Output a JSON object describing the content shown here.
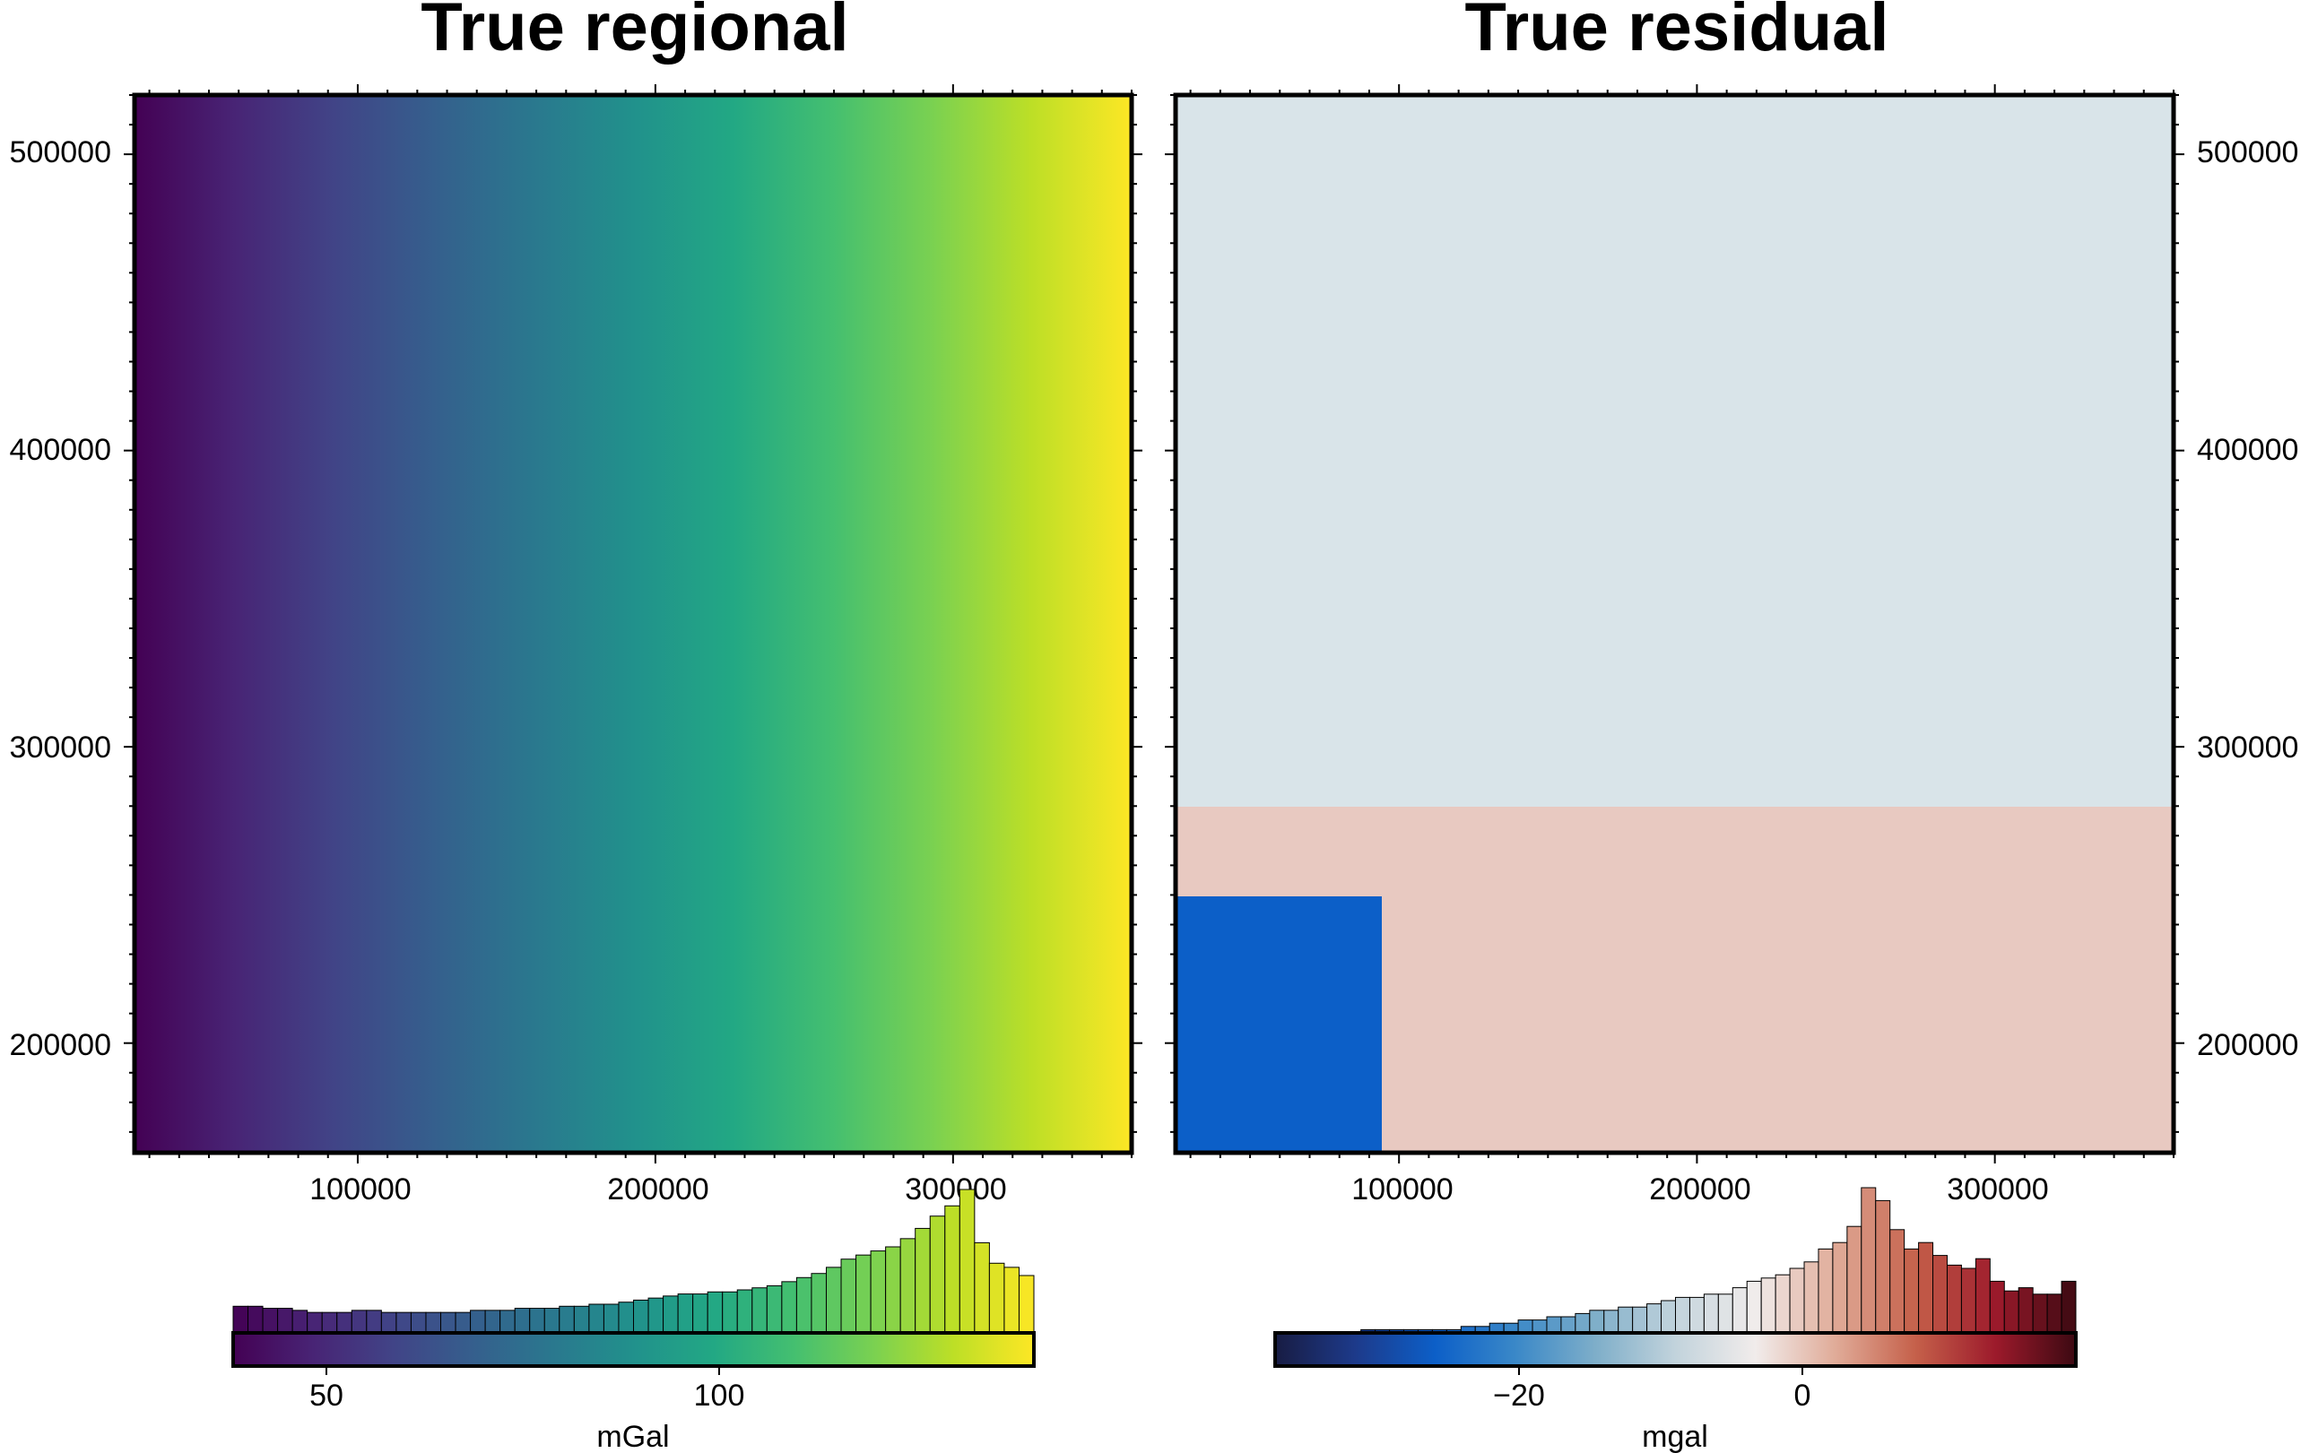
{
  "chart_data": [
    {
      "type": "heatmap",
      "title": "True regional",
      "x_ticks": [
        100000,
        200000,
        300000
      ],
      "y_ticks": [
        200000,
        300000,
        400000,
        500000
      ],
      "x_tick_labels": [
        "100000",
        "200000",
        "300000"
      ],
      "y_tick_labels": [
        "200000",
        "300000",
        "400000",
        "500000"
      ],
      "xlim": [
        25000,
        360000
      ],
      "ylim": [
        163000,
        520000
      ],
      "y_axis_side": "left",
      "colormap": "viridis",
      "colors": {
        "low": "#440154",
        "mid": "#21918c",
        "high": "#fde725"
      },
      "colorbar": {
        "label": "mGal",
        "range": [
          38,
          141
        ],
        "ticks": [
          50,
          100
        ],
        "tick_labels": [
          "50",
          "100"
        ],
        "histogram_counts": [
          13,
          13,
          12,
          12,
          11,
          10,
          10,
          10,
          11,
          11,
          10,
          10,
          10,
          10,
          10,
          10,
          11,
          11,
          11,
          12,
          12,
          12,
          13,
          13,
          14,
          14,
          15,
          16,
          17,
          18,
          19,
          19,
          20,
          20,
          21,
          22,
          23,
          25,
          27,
          29,
          32,
          36,
          38,
          40,
          42,
          46,
          51,
          57,
          62,
          70,
          44,
          34,
          32,
          28
        ]
      }
    },
    {
      "type": "heatmap",
      "title": "True residual",
      "x_ticks": [
        100000,
        200000,
        300000
      ],
      "y_ticks": [
        200000,
        300000,
        400000,
        500000
      ],
      "x_tick_labels": [
        "100000",
        "200000",
        "300000"
      ],
      "y_tick_labels": [
        "200000",
        "300000",
        "400000",
        "500000"
      ],
      "xlim": [
        25000,
        360000
      ],
      "ylim": [
        163000,
        520000
      ],
      "y_axis_side": "right",
      "colormap": "balance",
      "colors": {
        "low": "#181c43",
        "mid": "#f1eceb",
        "high": "#3c0912"
      },
      "colorbar": {
        "label": "mgal",
        "range": [
          -37,
          20
        ],
        "ticks": [
          -20,
          0
        ],
        "tick_labels": [
          "−20",
          "0"
        ],
        "histogram_counts": [
          0,
          0,
          0,
          0,
          0,
          0,
          1,
          1,
          1,
          1,
          1,
          1,
          1,
          2,
          2,
          3,
          3,
          4,
          4,
          5,
          5,
          6,
          7,
          7,
          8,
          8,
          9,
          10,
          11,
          11,
          12,
          12,
          14,
          16,
          17,
          18,
          20,
          22,
          26,
          28,
          33,
          45,
          41,
          32,
          26,
          28,
          24,
          21,
          20,
          23,
          16,
          13,
          14,
          12,
          12,
          16
        ]
      }
    }
  ]
}
